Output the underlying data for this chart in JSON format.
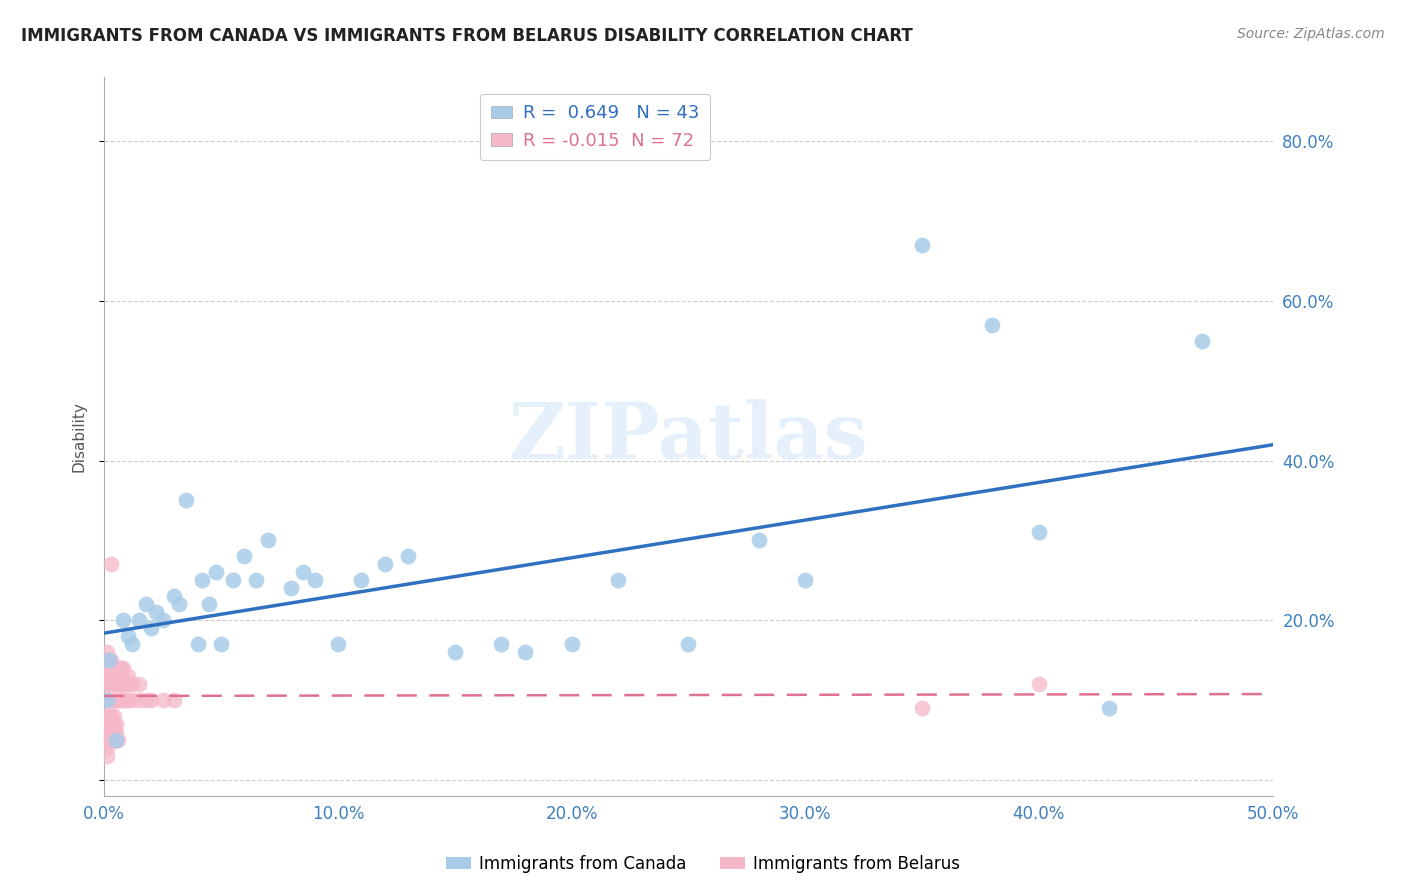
{
  "title": "IMMIGRANTS FROM CANADA VS IMMIGRANTS FROM BELARUS DISABILITY CORRELATION CHART",
  "source": "Source: ZipAtlas.com",
  "ylabel": "Disability",
  "watermark": "ZIPatlas",
  "xlim": [
    0.0,
    0.5
  ],
  "ylim": [
    -0.02,
    0.88
  ],
  "xticks": [
    0.0,
    0.1,
    0.2,
    0.3,
    0.4,
    0.5
  ],
  "yticks": [
    0.0,
    0.2,
    0.4,
    0.6,
    0.8
  ],
  "xtick_labels": [
    "0.0%",
    "10.0%",
    "20.0%",
    "30.0%",
    "40.0%",
    "50.0%"
  ],
  "ytick_labels": [
    "",
    "20.0%",
    "40.0%",
    "60.0%",
    "80.0%"
  ],
  "canada_R": 0.649,
  "canada_N": 43,
  "belarus_R": -0.015,
  "belarus_N": 72,
  "canada_color": "#a8cce8",
  "belarus_color": "#f5b8c8",
  "canada_line_color": "#3070c0",
  "belarus_line_color": "#e07090",
  "canada_scatter_x": [
    0.001,
    0.002,
    0.005,
    0.008,
    0.01,
    0.012,
    0.015,
    0.018,
    0.02,
    0.022,
    0.025,
    0.03,
    0.032,
    0.035,
    0.04,
    0.042,
    0.045,
    0.048,
    0.05,
    0.055,
    0.06,
    0.065,
    0.07,
    0.08,
    0.085,
    0.09,
    0.1,
    0.11,
    0.12,
    0.13,
    0.15,
    0.17,
    0.18,
    0.2,
    0.22,
    0.25,
    0.28,
    0.3,
    0.35,
    0.38,
    0.4,
    0.43,
    0.47
  ],
  "canada_scatter_y": [
    0.1,
    0.15,
    0.05,
    0.2,
    0.18,
    0.17,
    0.2,
    0.22,
    0.19,
    0.21,
    0.2,
    0.23,
    0.22,
    0.35,
    0.17,
    0.25,
    0.22,
    0.26,
    0.17,
    0.25,
    0.28,
    0.25,
    0.3,
    0.24,
    0.26,
    0.25,
    0.17,
    0.25,
    0.27,
    0.28,
    0.16,
    0.17,
    0.16,
    0.17,
    0.25,
    0.17,
    0.3,
    0.25,
    0.67,
    0.57,
    0.31,
    0.09,
    0.55
  ],
  "belarus_scatter_x": [
    0.001,
    0.001,
    0.001,
    0.001,
    0.001,
    0.001,
    0.001,
    0.001,
    0.001,
    0.001,
    0.001,
    0.002,
    0.002,
    0.002,
    0.002,
    0.002,
    0.002,
    0.002,
    0.002,
    0.002,
    0.003,
    0.003,
    0.003,
    0.003,
    0.003,
    0.003,
    0.003,
    0.003,
    0.003,
    0.003,
    0.004,
    0.004,
    0.004,
    0.004,
    0.004,
    0.004,
    0.004,
    0.004,
    0.005,
    0.005,
    0.005,
    0.005,
    0.005,
    0.005,
    0.005,
    0.006,
    0.006,
    0.006,
    0.006,
    0.006,
    0.007,
    0.007,
    0.007,
    0.007,
    0.008,
    0.008,
    0.008,
    0.009,
    0.009,
    0.01,
    0.01,
    0.01,
    0.012,
    0.012,
    0.015,
    0.015,
    0.018,
    0.02,
    0.025,
    0.03,
    0.35,
    0.4
  ],
  "belarus_scatter_y": [
    0.1,
    0.12,
    0.13,
    0.14,
    0.15,
    0.16,
    0.05,
    0.07,
    0.08,
    0.04,
    0.03,
    0.1,
    0.12,
    0.13,
    0.14,
    0.15,
    0.05,
    0.06,
    0.07,
    0.08,
    0.1,
    0.12,
    0.13,
    0.14,
    0.15,
    0.05,
    0.06,
    0.07,
    0.08,
    0.27,
    0.1,
    0.12,
    0.13,
    0.14,
    0.05,
    0.06,
    0.07,
    0.08,
    0.1,
    0.12,
    0.13,
    0.14,
    0.05,
    0.06,
    0.07,
    0.1,
    0.12,
    0.13,
    0.14,
    0.05,
    0.1,
    0.12,
    0.13,
    0.14,
    0.1,
    0.12,
    0.14,
    0.1,
    0.12,
    0.1,
    0.12,
    0.13,
    0.1,
    0.12,
    0.1,
    0.12,
    0.1,
    0.1,
    0.1,
    0.1,
    0.09,
    0.12
  ],
  "background_color": "#ffffff",
  "grid_color": "#cccccc"
}
